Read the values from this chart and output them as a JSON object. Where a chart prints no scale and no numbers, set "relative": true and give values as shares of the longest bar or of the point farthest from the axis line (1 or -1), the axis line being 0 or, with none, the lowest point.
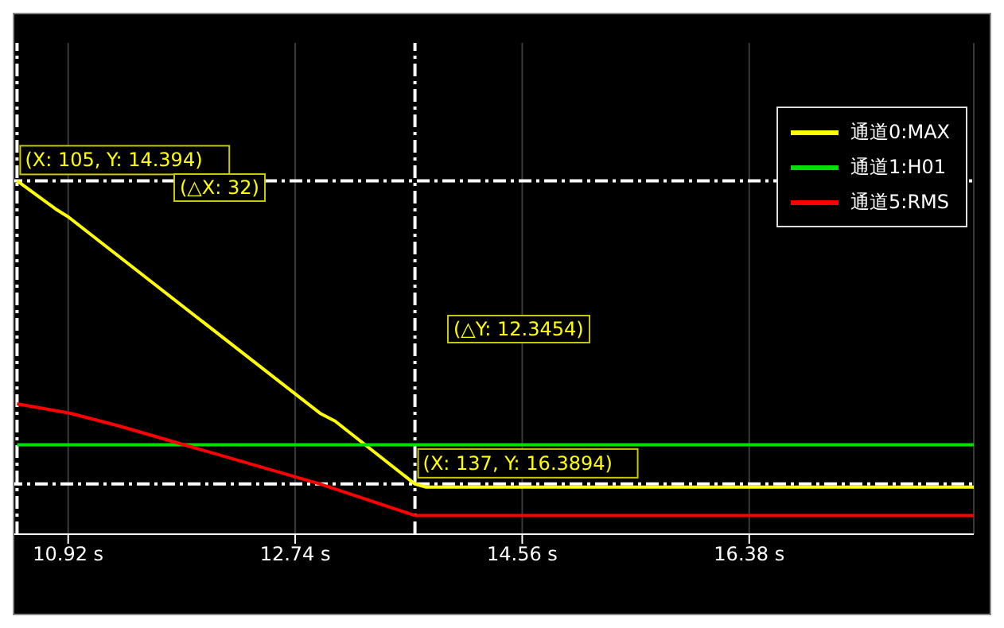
{
  "chart_data": {
    "type": "line",
    "relative": true,
    "xlim": [
      10.45,
      18.18
    ],
    "xticks": [
      {
        "value": 10.92,
        "label": "10.92 s"
      },
      {
        "value": 12.74,
        "label": "12.74 s"
      },
      {
        "value": 14.56,
        "label": "14.56 s"
      },
      {
        "value": 16.38,
        "label": "16.38 s"
      }
    ],
    "series": [
      {
        "name": "通道0:MAX",
        "color": "#ffff00",
        "x": [
          10.51,
          10.82,
          10.92,
          12.94,
          13.06,
          13.7,
          13.79,
          18.18
        ],
        "values": [
          1,
          0.92,
          0.898,
          0.342,
          0.32,
          0.142,
          0.133,
          0.133
        ]
      },
      {
        "name": "通道1:H01",
        "color": "#00e000",
        "x": [
          10.51,
          18.18
        ],
        "values": [
          0.253,
          0.253
        ]
      },
      {
        "name": "通道5:RMS",
        "color": "#ff0000",
        "x": [
          10.51,
          10.94,
          11.32,
          12.94,
          13.7,
          18.18
        ],
        "values": [
          0.369,
          0.342,
          0.307,
          0.142,
          0.053,
          0.053
        ]
      }
    ],
    "ref_lines": [
      {
        "axis": "x",
        "value": 10.51,
        "color": "#ffffff",
        "line_style": "dashed"
      },
      {
        "axis": "x",
        "value": 13.7,
        "color": "#ffffff",
        "line_style": "dashed"
      },
      {
        "axis": "y",
        "value": 1,
        "color": "#ffffff",
        "line_style": "dashed"
      },
      {
        "axis": "y",
        "value": 0.142,
        "color": "#ffffff",
        "line_style": "dashed"
      }
    ],
    "annotations": [
      {
        "text": "(X: 105, Y: 14.394)",
        "x": 10.51,
        "y": 1
      },
      "(△X: 32)",
      "(△Y: 12.3454)",
      {
        "text": "(X: 137, Y: 16.3894)",
        "x": 13.7,
        "y": 0.142
      }
    ],
    "grid": "x",
    "legend": "top right",
    "marker": "none",
    "line_style": "solid"
  }
}
